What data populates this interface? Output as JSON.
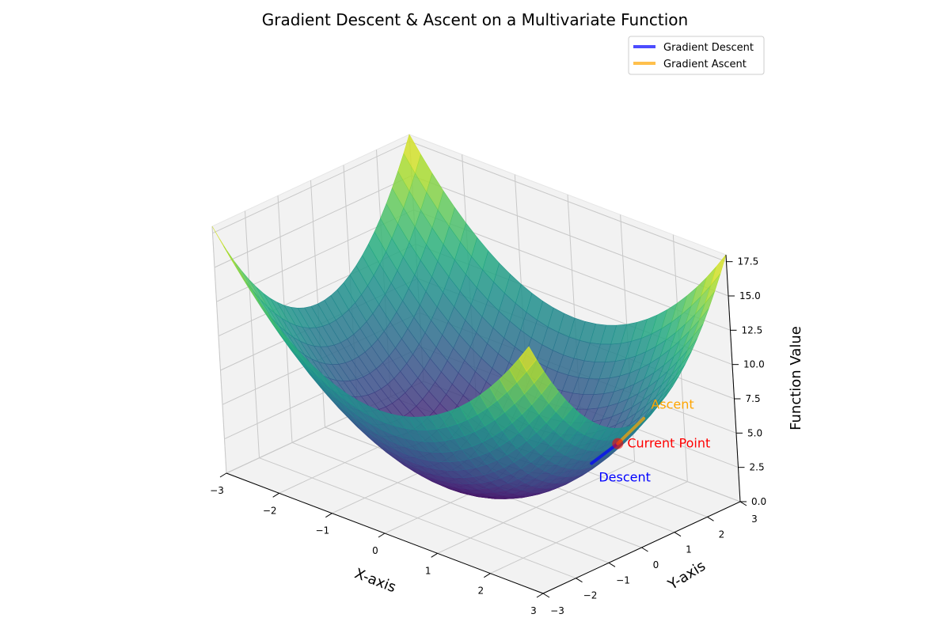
{
  "chart_data": {
    "type": "surface",
    "title": "Gradient Descent & Ascent on a Multivariate Function",
    "xlabel": "X-axis",
    "ylabel": "Y-axis",
    "zlabel": "Function Value",
    "function": "x^2 + y^2",
    "xlim": [
      -3,
      3
    ],
    "ylim": [
      -3,
      3
    ],
    "zlim": [
      0,
      18
    ],
    "x_ticks": [
      "−3",
      "−2",
      "−1",
      "0",
      "1",
      "2",
      "3"
    ],
    "y_ticks": [
      "−3",
      "−2",
      "−1",
      "0",
      "1",
      "2",
      "3"
    ],
    "z_ticks": [
      "0.0",
      "2.5",
      "5.0",
      "7.5",
      "10.0",
      "12.5",
      "15.0",
      "17.5"
    ],
    "x_tick_values": [
      -3,
      -2,
      -1,
      0,
      1,
      2,
      3
    ],
    "y_tick_values": [
      -3,
      -2,
      -1,
      0,
      1,
      2,
      3
    ],
    "z_tick_values": [
      0,
      2.5,
      5,
      7.5,
      10,
      12.5,
      15,
      17.5
    ],
    "colormap": "viridis",
    "grid": true,
    "legend_position": "top-right",
    "series": [
      {
        "name": "Gradient Descent",
        "color": "#0000ff",
        "x": [
          2.0,
          1.6
        ],
        "y": [
          1.0,
          0.8
        ],
        "z": [
          5.0,
          3.2
        ]
      },
      {
        "name": "Gradient Ascent",
        "color": "#ffa500",
        "x": [
          2.0,
          2.4
        ],
        "y": [
          1.0,
          1.2
        ],
        "z": [
          5.0,
          7.2
        ]
      }
    ],
    "current_point": {
      "x": 2.0,
      "y": 1.0,
      "z": 5.0,
      "color": "#ff0000"
    },
    "annotations": [
      {
        "text": "Current Point",
        "color": "#ff0000"
      },
      {
        "text": "Descent",
        "color": "#0000ff"
      },
      {
        "text": "Ascent",
        "color": "#ffa500"
      }
    ]
  }
}
